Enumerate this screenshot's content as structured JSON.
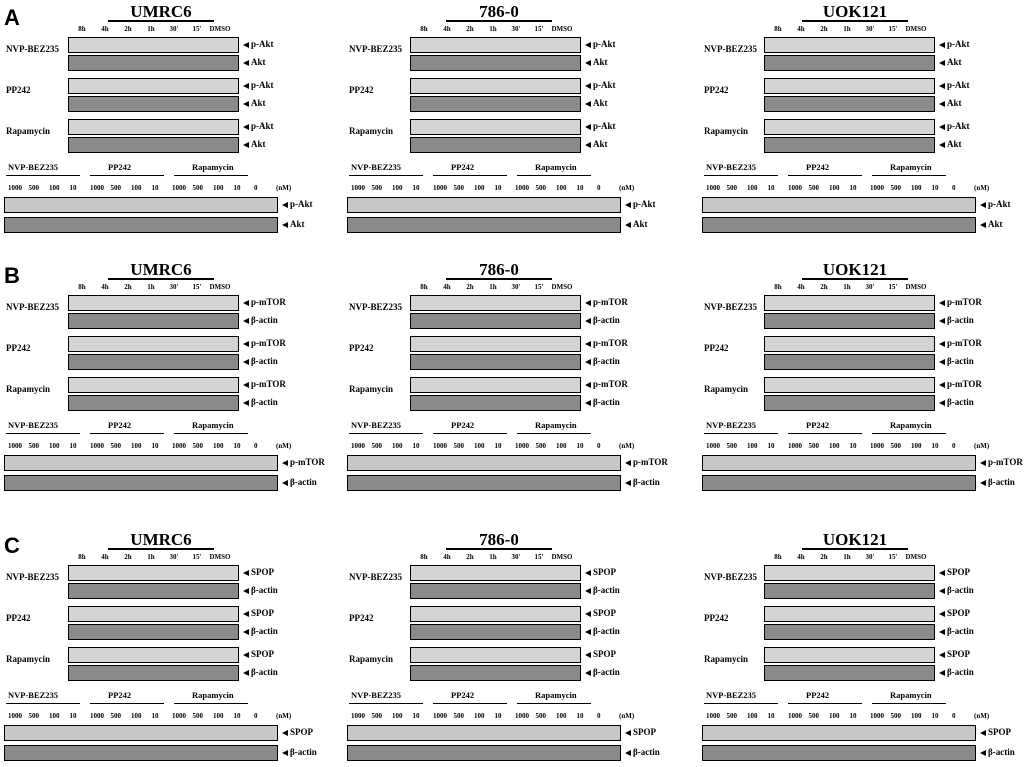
{
  "panels": [
    {
      "letter": "A",
      "markers": [
        "p-Akt",
        "Akt"
      ]
    },
    {
      "letter": "B",
      "markers": [
        "p-mTOR",
        "β-actin"
      ]
    },
    {
      "letter": "C",
      "markers": [
        "SPOP",
        "β-actin"
      ]
    }
  ],
  "cell_lines": [
    "UMRC6",
    "786-0",
    "UOK121"
  ],
  "time_labels": [
    "8h",
    "4h",
    "2h",
    "1h",
    "30'",
    "15'",
    "DMSO"
  ],
  "drugs": [
    "NVP-BEZ235",
    "PP242",
    "Rapamycin"
  ],
  "dose_labels": [
    "1000",
    "500",
    "100",
    "10",
    "1000",
    "500",
    "100",
    "10",
    "1000",
    "500",
    "100",
    "10",
    "0"
  ],
  "dose_unit": "(nM)"
}
